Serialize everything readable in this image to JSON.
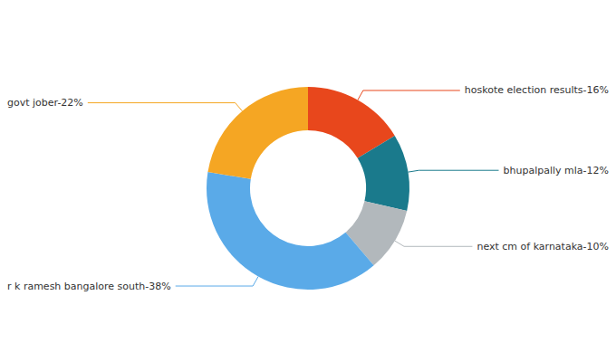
{
  "chart_data": {
    "type": "pie",
    "categories": [
      "hoskote election results-16%",
      "bhupalpally mla-12%",
      "next cm of karnataka-10%",
      "r k ramesh bangalore south-38%",
      "govt jober-22%"
    ],
    "values": [
      16,
      12,
      10,
      38,
      22
    ],
    "colors": [
      "#e8471c",
      "#1a7a8c",
      "#b2b8bc",
      "#5aaae8",
      "#f5a623"
    ]
  }
}
